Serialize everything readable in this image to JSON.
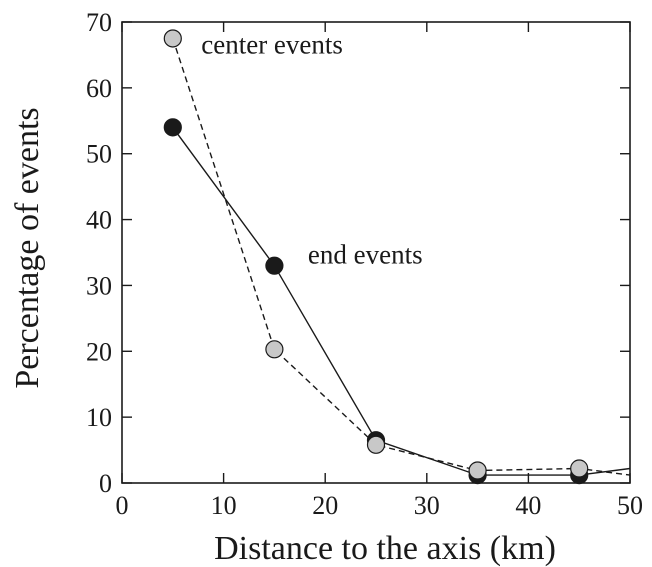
{
  "chart_data": {
    "type": "line",
    "xlabel": "Distance to the axis (km)",
    "ylabel": "Percentage of events",
    "xlim": [
      0,
      50
    ],
    "ylim": [
      0,
      70
    ],
    "xticks": [
      0,
      10,
      20,
      30,
      40,
      50
    ],
    "yticks": [
      0,
      10,
      20,
      30,
      40,
      50,
      60,
      70
    ],
    "grid": false,
    "legend": "none",
    "series": [
      {
        "name": "end events",
        "style": "solid",
        "marker_color": "#1a1a1a",
        "x": [
          5,
          15,
          25,
          35,
          45,
          50
        ],
        "y": [
          54,
          33,
          6.5,
          1.2,
          1.2,
          2.2
        ],
        "marker_count": 5
      },
      {
        "name": "center events",
        "style": "dashed",
        "marker_color": "#c8c8c8",
        "x": [
          5,
          15,
          25,
          35,
          45,
          50
        ],
        "y": [
          67.5,
          20.3,
          5.8,
          1.9,
          2.2,
          1.2
        ],
        "marker_count": 5
      }
    ],
    "annotations": [
      {
        "text": "center events",
        "x": 7.8,
        "y": 65.2
      },
      {
        "text": "end events",
        "x": 18.3,
        "y": 33.3
      }
    ]
  }
}
